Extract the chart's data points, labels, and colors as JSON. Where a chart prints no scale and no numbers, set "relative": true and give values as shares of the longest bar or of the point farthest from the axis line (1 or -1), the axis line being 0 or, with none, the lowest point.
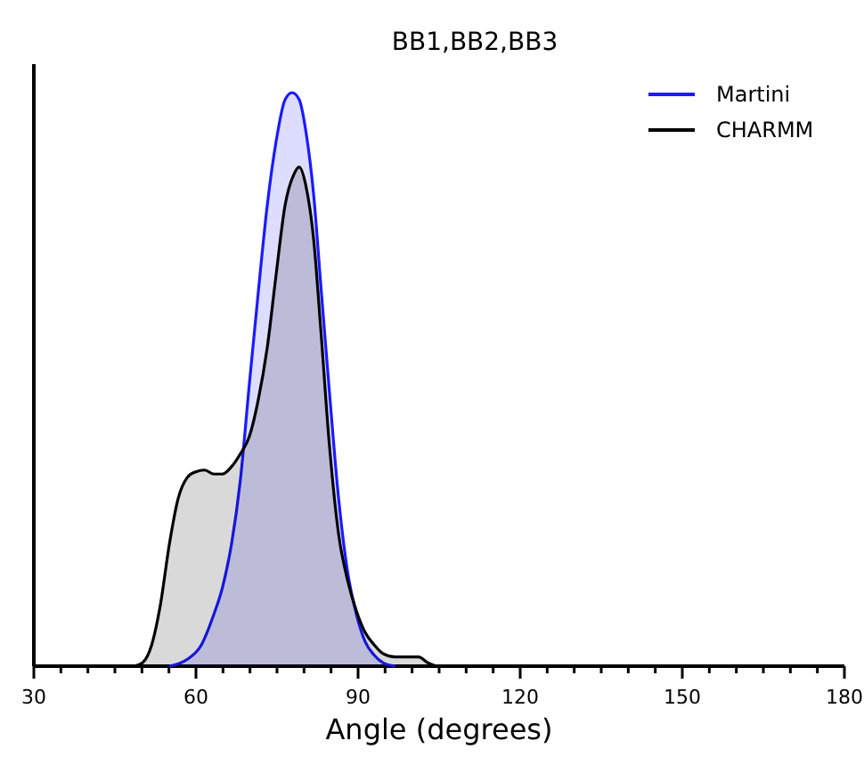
{
  "chart_data": {
    "type": "area",
    "title": "BB1,BB2,BB3",
    "xlabel": "Angle (degrees)",
    "relative": true,
    "xlim": [
      30,
      180
    ],
    "xticks": [
      30,
      {
        "value": 35,
        "label": null
      },
      {
        "value": 40,
        "label": null
      },
      {
        "value": 45,
        "label": null
      },
      {
        "value": 50,
        "label": null
      },
      {
        "value": 55,
        "label": null
      },
      60,
      {
        "value": 65,
        "label": null
      },
      {
        "value": 70,
        "label": null
      },
      {
        "value": 75,
        "label": null
      },
      {
        "value": 80,
        "label": null
      },
      {
        "value": 85,
        "label": null
      },
      90,
      {
        "value": 95,
        "label": null
      },
      {
        "value": 100,
        "label": null
      },
      {
        "value": 105,
        "label": null
      },
      {
        "value": 110,
        "label": null
      },
      {
        "value": 115,
        "label": null
      },
      120,
      {
        "value": 125,
        "label": null
      },
      {
        "value": 130,
        "label": null
      },
      {
        "value": 135,
        "label": null
      },
      {
        "value": 140,
        "label": null
      },
      {
        "value": 145,
        "label": null
      },
      150,
      {
        "value": 155,
        "label": null
      },
      {
        "value": 160,
        "label": null
      },
      {
        "value": 165,
        "label": null
      },
      {
        "value": 170,
        "label": null
      },
      {
        "value": 175,
        "label": null
      },
      180
    ],
    "legend": "top right",
    "grid": false,
    "tick_labels": "x",
    "series": [
      {
        "name": "Martini",
        "color": "#1a1aff",
        "x": [
          55.1,
          58.4,
          61.0,
          63.3,
          64.9,
          66.6,
          68.2,
          69.9,
          71.5,
          73.2,
          74.8,
          76.5,
          77.8,
          79.1,
          80.4,
          81.8,
          83.1,
          84.7,
          86.4,
          88.0,
          89.7,
          91.3,
          93.0,
          94.6,
          96.9
        ],
        "values": [
          0,
          0.012,
          0.037,
          0.09,
          0.137,
          0.214,
          0.323,
          0.494,
          0.649,
          0.804,
          0.913,
          0.988,
          1,
          0.988,
          0.929,
          0.82,
          0.665,
          0.478,
          0.292,
          0.168,
          0.09,
          0.043,
          0.019,
          0.006,
          0
        ]
      },
      {
        "name": "CHARMM",
        "color": "#000000",
        "x": [
          48.5,
          50.1,
          51.8,
          53.4,
          55.1,
          56.7,
          58.4,
          60.0,
          61.6,
          63.3,
          64.9,
          66.6,
          68.2,
          69.9,
          71.5,
          73.2,
          74.8,
          76.5,
          78.1,
          79.1,
          80.4,
          81.8,
          83.1,
          84.7,
          86.4,
          88.0,
          89.7,
          91.3,
          93.0,
          94.6,
          96.9,
          101.2,
          102.9,
          104.5
        ],
        "values": [
          0,
          0.006,
          0.037,
          0.106,
          0.214,
          0.292,
          0.329,
          0.339,
          0.342,
          0.335,
          0.335,
          0.348,
          0.37,
          0.401,
          0.463,
          0.556,
          0.68,
          0.804,
          0.857,
          0.87,
          0.835,
          0.742,
          0.587,
          0.385,
          0.23,
          0.152,
          0.096,
          0.059,
          0.037,
          0.022,
          0.016,
          0.016,
          0.006,
          0
        ]
      }
    ]
  }
}
